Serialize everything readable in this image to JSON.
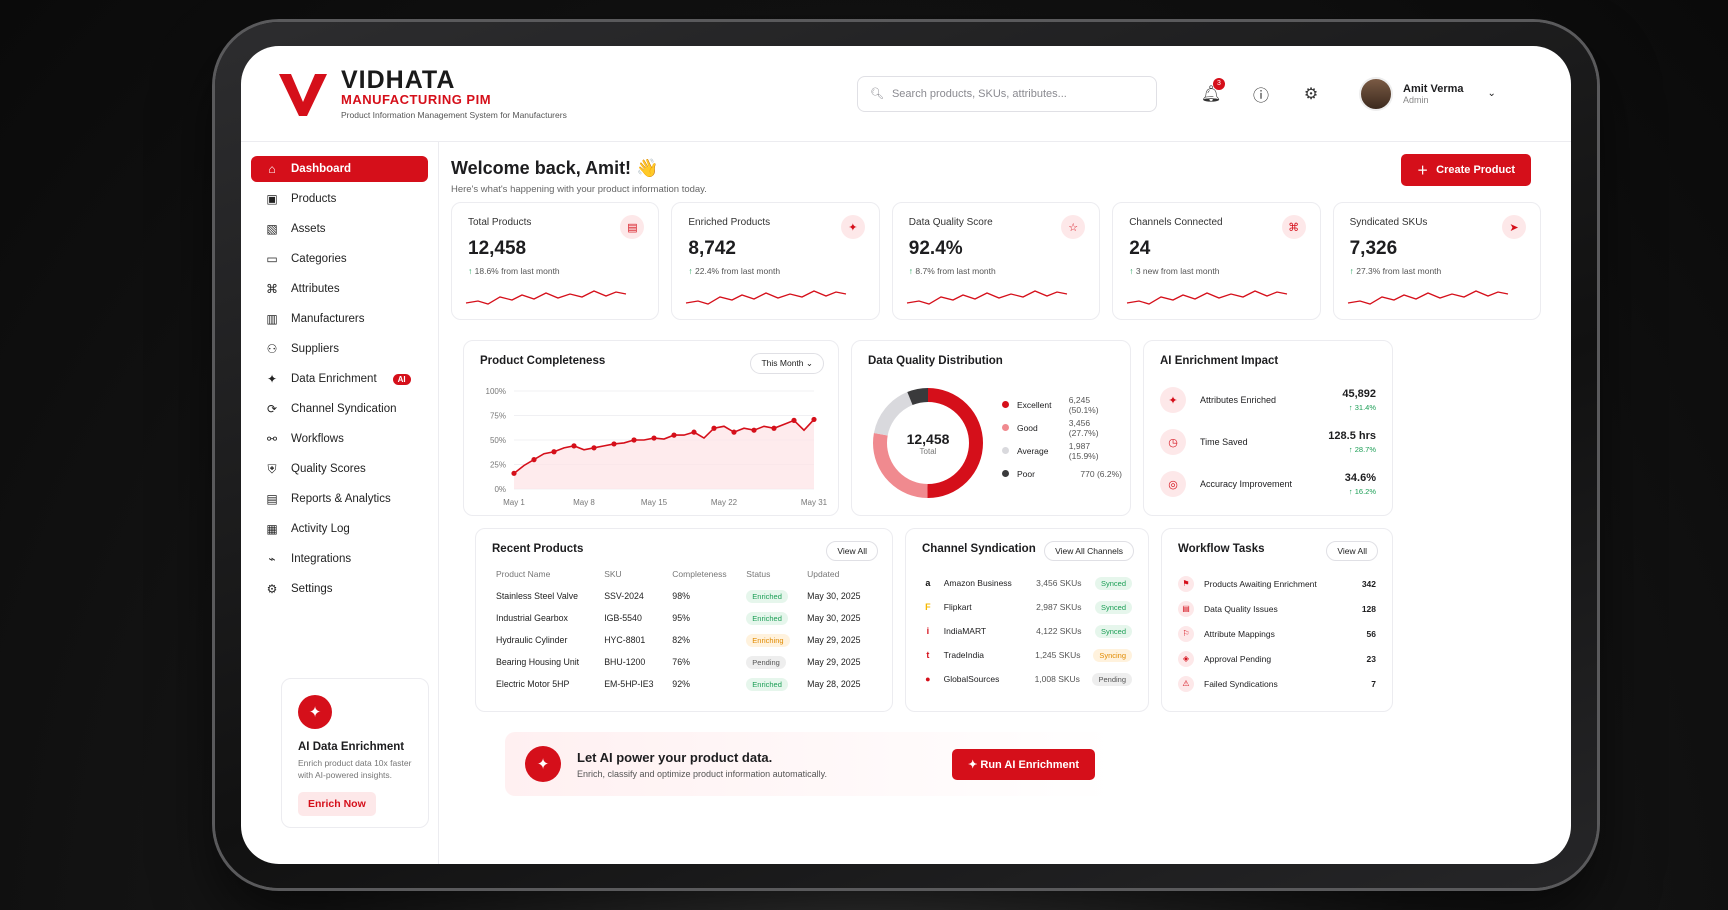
{
  "brand": {
    "name": "VIDHATA",
    "subtitle": "MANUFACTURING PIM",
    "tagline": "Product Information Management System for Manufacturers"
  },
  "search": {
    "placeholder": "Search products, SKUs, attributes..."
  },
  "header": {
    "notifications": "3",
    "user_name": "Amit Verma",
    "user_role": "Admin"
  },
  "sidebar": {
    "items": [
      {
        "label": "Dashboard",
        "icon": "home-icon"
      },
      {
        "label": "Products",
        "icon": "box-icon"
      },
      {
        "label": "Assets",
        "icon": "image-icon"
      },
      {
        "label": "Categories",
        "icon": "folder-icon"
      },
      {
        "label": "Attributes",
        "icon": "tag-icon"
      },
      {
        "label": "Manufacturers",
        "icon": "factory-icon"
      },
      {
        "label": "Suppliers",
        "icon": "users-icon"
      },
      {
        "label": "Data Enrichment",
        "icon": "sparkle-icon",
        "badge": "AI"
      },
      {
        "label": "Channel Syndication",
        "icon": "share-icon"
      },
      {
        "label": "Workflows",
        "icon": "workflow-icon"
      },
      {
        "label": "Quality Scores",
        "icon": "shield-icon"
      },
      {
        "label": "Reports & Analytics",
        "icon": "chart-icon"
      },
      {
        "label": "Activity Log",
        "icon": "clipboard-icon"
      },
      {
        "label": "Integrations",
        "icon": "plug-icon"
      },
      {
        "label": "Settings",
        "icon": "gear-icon"
      }
    ],
    "promo": {
      "title": "AI Data Enrichment",
      "text": "Enrich product data 10x faster with AI-powered insights.",
      "button": "Enrich Now"
    }
  },
  "welcome": {
    "title": "Welcome back, Amit! 👋",
    "subtitle": "Here's what's happening with your product information today.",
    "create": "Create Product"
  },
  "kpis": [
    {
      "label": "Total Products",
      "value": "12,458",
      "change": "18.6% from last month"
    },
    {
      "label": "Enriched Products",
      "value": "8,742",
      "change": "22.4% from last month"
    },
    {
      "label": "Data Quality Score",
      "value": "92.4%",
      "change": "8.7% from last month"
    },
    {
      "label": "Channels Connected",
      "value": "24",
      "change": "3 new from last month"
    },
    {
      "label": "Syndicated SKUs",
      "value": "7,326",
      "change": "27.3% from last month"
    }
  ],
  "completeness": {
    "title": "Product Completeness",
    "period": "This Month"
  },
  "chart_data": {
    "type": "line",
    "title": "Product Completeness",
    "x": [
      "May 1",
      "May 2",
      "May 3",
      "May 4",
      "May 5",
      "May 6",
      "May 7",
      "May 8",
      "May 9",
      "May 10",
      "May 11",
      "May 12",
      "May 13",
      "May 14",
      "May 15",
      "May 16",
      "May 17",
      "May 18",
      "May 19",
      "May 20",
      "May 21",
      "May 22",
      "May 23",
      "May 24",
      "May 25",
      "May 26",
      "May 27",
      "May 28",
      "May 29",
      "May 30",
      "May 31"
    ],
    "series": [
      {
        "values": [
          16,
          24,
          30,
          36,
          38,
          42,
          44,
          40,
          42,
          44,
          46,
          47,
          50,
          50,
          52,
          51,
          55,
          55,
          58,
          52,
          62,
          64,
          58,
          62,
          60,
          64,
          62,
          66,
          70,
          60,
          71
        ]
      }
    ],
    "xticks": [
      "May 1",
      "May 8",
      "May 15",
      "May 22",
      "May 31"
    ],
    "yticks": [
      "0%",
      "25%",
      "50%",
      "75%",
      "100%"
    ],
    "ylim": [
      0,
      100
    ],
    "grid": true
  },
  "quality": {
    "title": "Data Quality Distribution",
    "total": "12,458",
    "total_label": "Total",
    "items": [
      {
        "label": "Excellent",
        "value": "6,245 (50.1%)",
        "color": "#d50f1a",
        "pct": 50.1
      },
      {
        "label": "Good",
        "value": "3,456 (27.7%)",
        "color": "#f08a8f",
        "pct": 27.7
      },
      {
        "label": "Average",
        "value": "1,987 (15.9%)",
        "color": "#d9d9dd",
        "pct": 15.9
      },
      {
        "label": "Poor",
        "value": "770 (6.2%)",
        "color": "#3a3a3c",
        "pct": 6.2
      }
    ]
  },
  "impact": {
    "title": "AI Enrichment Impact",
    "items": [
      {
        "label": "Attributes Enriched",
        "value": "45,892",
        "change": "↑ 31.4%"
      },
      {
        "label": "Time Saved",
        "value": "128.5 hrs",
        "change": "↑ 28.7%"
      },
      {
        "label": "Accuracy Improvement",
        "value": "34.6%",
        "change": "↑ 16.2%"
      }
    ]
  },
  "recent": {
    "title": "Recent Products",
    "view_all": "View All",
    "columns": [
      "Product Name",
      "SKU",
      "Completeness",
      "Status",
      "Updated"
    ],
    "rows": [
      [
        "Stainless Steel Valve",
        "SSV-2024",
        "98%",
        "Enriched",
        "May 30, 2025"
      ],
      [
        "Industrial Gearbox",
        "IGB-5540",
        "95%",
        "Enriched",
        "May 30, 2025"
      ],
      [
        "Hydraulic Cylinder",
        "HYC-8801",
        "82%",
        "Enriching",
        "May 29, 2025"
      ],
      [
        "Bearing Housing Unit",
        "BHU-1200",
        "76%",
        "Pending",
        "May 29, 2025"
      ],
      [
        "Electric Motor 5HP",
        "EM-5HP-IE3",
        "92%",
        "Enriched",
        "May 28, 2025"
      ]
    ]
  },
  "channels": {
    "title": "Channel Syndication",
    "view_all": "View All Channels",
    "rows": [
      {
        "name": "Amazon Business",
        "skus": "3,456 SKUs",
        "status": "Synced",
        "icon": "a"
      },
      {
        "name": "Flipkart",
        "skus": "2,987 SKUs",
        "status": "Synced",
        "icon": "F"
      },
      {
        "name": "IndiaMART",
        "skus": "4,122 SKUs",
        "status": "Synced",
        "icon": "i"
      },
      {
        "name": "TradeIndia",
        "skus": "1,245 SKUs",
        "status": "Syncing",
        "icon": "t"
      },
      {
        "name": "GlobalSources",
        "skus": "1,008 SKUs",
        "status": "Pending",
        "icon": "●"
      }
    ]
  },
  "workflow": {
    "title": "Workflow Tasks",
    "view_all": "View All",
    "rows": [
      {
        "label": "Products Awaiting Enrichment",
        "count": "342"
      },
      {
        "label": "Data Quality Issues",
        "count": "128"
      },
      {
        "label": "Attribute Mappings",
        "count": "56"
      },
      {
        "label": "Approval Pending",
        "count": "23"
      },
      {
        "label": "Failed Syndications",
        "count": "7"
      }
    ]
  },
  "banner": {
    "title": "Let AI power your product data.",
    "text": "Enrich, classify and optimize product information automatically.",
    "button": "Run AI Enrichment"
  }
}
